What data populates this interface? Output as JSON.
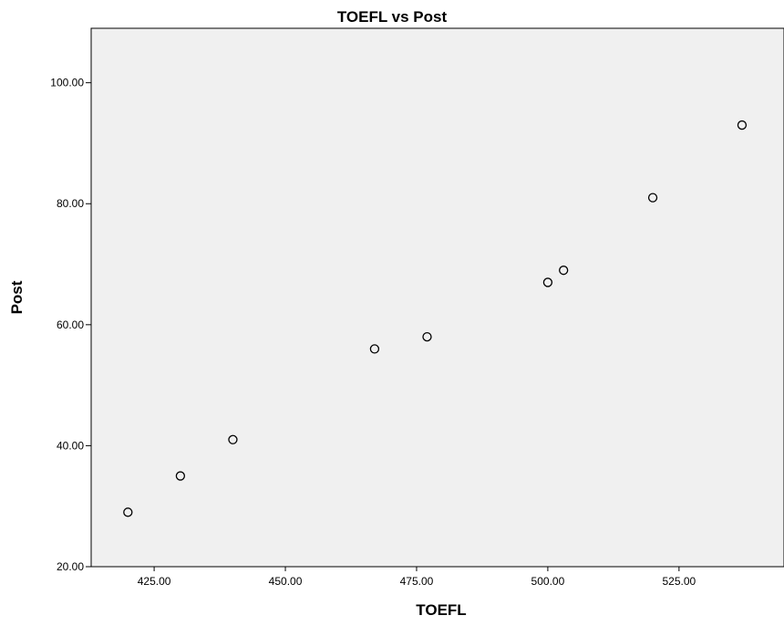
{
  "chart_data": {
    "type": "scatter",
    "title": "TOEFL vs Post",
    "xlabel": "TOEFL",
    "ylabel": "Post",
    "xlim": [
      413,
      545
    ],
    "ylim": [
      20,
      109
    ],
    "x_ticks": [
      425,
      450,
      475,
      500,
      525
    ],
    "x_tick_labels": [
      "425.00",
      "450.00",
      "475.00",
      "500.00",
      "525.00"
    ],
    "y_ticks": [
      20,
      40,
      60,
      80,
      100
    ],
    "y_tick_labels": [
      "20.00",
      "40.00",
      "60.00",
      "80.00",
      "100.00"
    ],
    "grid": false,
    "plot_background": "#f0f0f0",
    "series": [
      {
        "x": [
          420,
          430,
          440,
          467,
          477,
          500,
          503,
          520,
          537
        ],
        "y": [
          29,
          35,
          41,
          56,
          58,
          67,
          69,
          81,
          93
        ]
      }
    ]
  }
}
